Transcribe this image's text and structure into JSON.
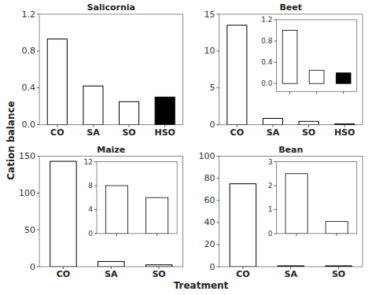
{
  "chart_data": [
    {
      "type": "bar",
      "title": "Salicornia",
      "categories": [
        "CO",
        "SA",
        "SO",
        "HSO"
      ],
      "values": [
        0.93,
        0.42,
        0.25,
        0.3
      ],
      "colors": [
        "white",
        "white",
        "white",
        "black"
      ],
      "ylim": [
        0,
        1.2
      ],
      "yticks": [
        {
          "value": 0,
          "label": "0.0"
        },
        0.4,
        0.8,
        1.2
      ],
      "xlabel": "Treatment",
      "ylabel": "Cation balance"
    },
    {
      "type": "bar",
      "title": "Beet",
      "categories": [
        "CO",
        "SA",
        "SO",
        "HSO"
      ],
      "values": [
        13.5,
        0.85,
        0.45,
        0.1
      ],
      "colors": [
        "white",
        "white",
        "white",
        "black"
      ],
      "ylim": [
        0,
        15
      ],
      "yticks": [
        0,
        5,
        10,
        15
      ]
    },
    {
      "type": "bar",
      "categories": [
        "SA",
        "SO",
        "HSO"
      ],
      "values": [
        1.0,
        0.25,
        0.2
      ],
      "colors": [
        "white",
        "white",
        "black"
      ],
      "ylim": [
        -0.15,
        1.2
      ],
      "yticks": [
        {
          "value": 0,
          "label": "0.0"
        },
        0.4,
        0.8,
        1.2
      ],
      "tick_labels": "y"
    },
    {
      "type": "bar",
      "title": "Maize",
      "categories": [
        "CO",
        "SA",
        "SO"
      ],
      "values": [
        143,
        7,
        2.5
      ],
      "colors": [
        "white",
        "white",
        "white"
      ],
      "ylim": [
        0,
        150
      ],
      "yticks": [
        0,
        50,
        100,
        150
      ]
    },
    {
      "type": "bar",
      "categories": [
        "SA",
        "SO"
      ],
      "values": [
        8,
        6
      ],
      "colors": [
        "white",
        "white"
      ],
      "ylim": [
        0,
        12
      ],
      "yticks": [
        0,
        4,
        8,
        12
      ],
      "tick_labels": "y"
    },
    {
      "type": "bar",
      "title": "Bean",
      "categories": [
        "CO",
        "SA",
        "SO"
      ],
      "values": [
        75,
        0.8,
        0.8
      ],
      "colors": [
        "white",
        "white",
        "white"
      ],
      "ylim": [
        0,
        100
      ],
      "yticks": [
        0,
        20,
        40,
        60,
        80,
        100
      ]
    },
    {
      "type": "bar",
      "categories": [
        "SA",
        "SO"
      ],
      "values": [
        2.5,
        0.5
      ],
      "colors": [
        "white",
        "white"
      ],
      "ylim": [
        0,
        3
      ],
      "yticks": [
        0,
        1,
        2,
        3
      ],
      "tick_labels": "y"
    }
  ]
}
